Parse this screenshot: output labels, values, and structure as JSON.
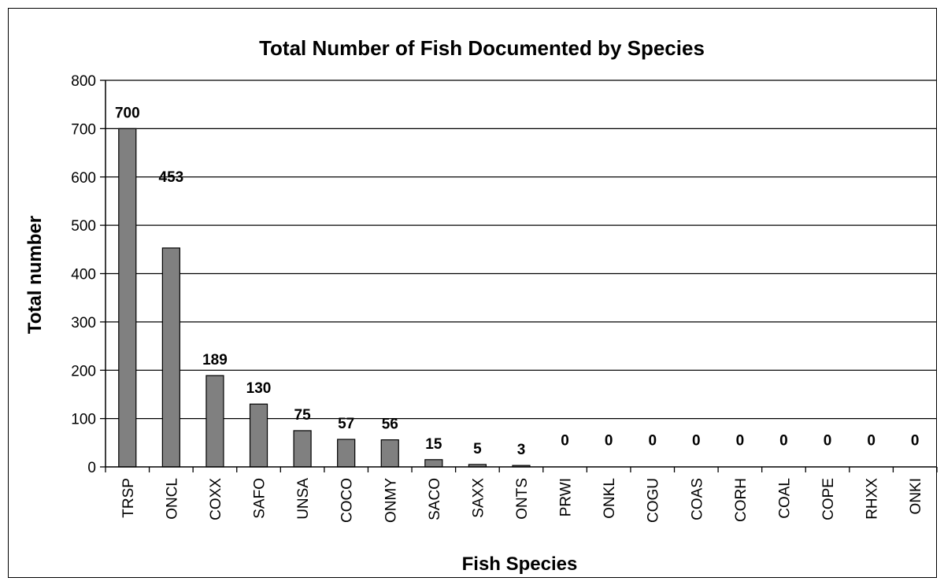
{
  "chart_data": {
    "type": "bar",
    "title": "Total Number of Fish Documented by Species",
    "xlabel": "Fish Species",
    "ylabel": "Total number",
    "categories": [
      "TRSP",
      "ONCL",
      "COXX",
      "SAFO",
      "UNSA",
      "COCO",
      "ONMY",
      "SACO",
      "SAXX",
      "ONTS",
      "PRWI",
      "ONKL",
      "COGU",
      "COAS",
      "CORH",
      "COAL",
      "COPE",
      "RHXX",
      "ONKI"
    ],
    "values": [
      700,
      453,
      189,
      130,
      75,
      57,
      56,
      15,
      5,
      3,
      0,
      0,
      0,
      0,
      0,
      0,
      0,
      0,
      0
    ],
    "data_labels": [
      "700",
      "453",
      "189",
      "130",
      "75",
      "57",
      "56",
      "15",
      "5",
      "3",
      "0",
      "0",
      "0",
      "0",
      "0",
      "0",
      "0",
      "0",
      "0"
    ],
    "ylim": [
      0,
      800
    ],
    "yticks": [
      0,
      100,
      200,
      300,
      400,
      500,
      600,
      700,
      800
    ],
    "grid": "horizontal",
    "legend": "none",
    "colors": {
      "bar": "#808080",
      "bar_stroke": "#000000",
      "grid": "#000000"
    }
  }
}
